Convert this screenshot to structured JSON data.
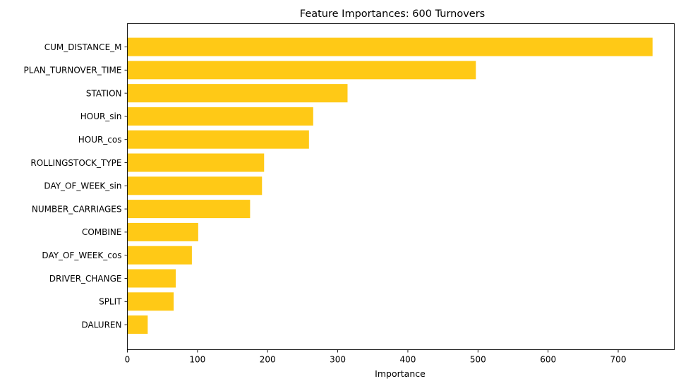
{
  "chart_data": {
    "type": "bar",
    "orientation": "horizontal",
    "title": "Feature Importances: 600 Turnovers",
    "xlabel": "Importance",
    "ylabel": "",
    "xlim": [
      0,
      780
    ],
    "xticks": [
      0,
      100,
      200,
      300,
      400,
      500,
      600,
      700
    ],
    "categories": [
      "CUM_DISTANCE_M",
      "PLAN_TURNOVER_TIME",
      "STATION",
      "HOUR_sin",
      "HOUR_cos",
      "ROLLINGSTOCK_TYPE",
      "DAY_OF_WEEK_sin",
      "NUMBER_CARRIAGES",
      "COMBINE",
      "DAY_OF_WEEK_cos",
      "DRIVER_CHANGE",
      "SPLIT",
      "DALUREN"
    ],
    "values": [
      749,
      497,
      314,
      265,
      259,
      195,
      192,
      175,
      101,
      92,
      69,
      66,
      29
    ],
    "bar_color": "#ffc916",
    "grid": false,
    "legend": "none"
  }
}
